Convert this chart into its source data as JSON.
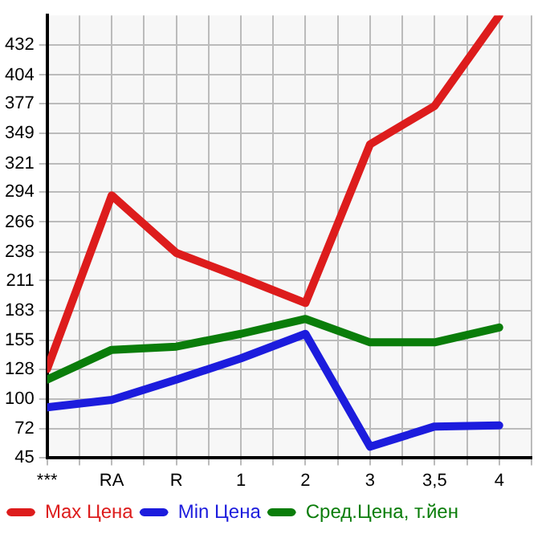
{
  "chart_data": {
    "type": "line",
    "categories": [
      "***",
      "RA",
      "R",
      "1",
      "2",
      "3",
      "3,5",
      "4"
    ],
    "series": [
      {
        "name": "Max Цена",
        "color": "#dd1c1c",
        "values": [
          128,
          291,
          237,
          214,
          190,
          339,
          375,
          460
        ]
      },
      {
        "name": "Min Цена",
        "color": "#1c1cdd",
        "values": [
          92,
          99,
          118,
          138,
          161,
          55,
          74,
          75
        ]
      },
      {
        "name": "Сред.Цена, т.йен",
        "color": "#0a7d0a",
        "values": [
          118,
          146,
          149,
          161,
          175,
          153,
          153,
          167
        ]
      }
    ],
    "ylim": [
      45,
      460
    ],
    "yticks": [
      45,
      72,
      100,
      128,
      155,
      183,
      211,
      238,
      266,
      294,
      321,
      349,
      377,
      404,
      432
    ],
    "grid": true,
    "legend": "bottom",
    "marker": "none",
    "line_style": "solid"
  }
}
